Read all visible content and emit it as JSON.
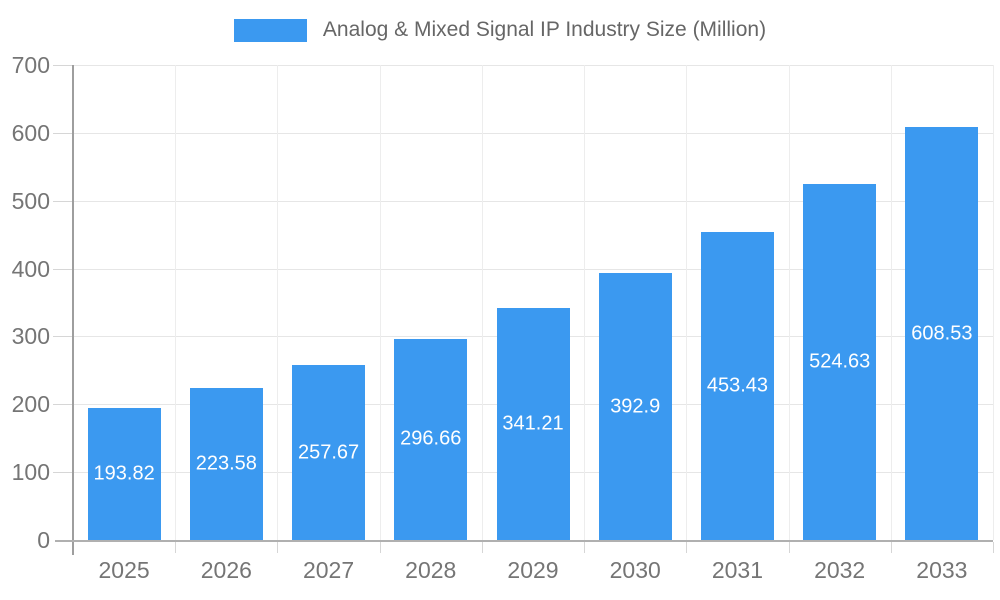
{
  "chart_data": {
    "type": "bar",
    "title": "Analog & Mixed Signal IP Industry Size (Million)",
    "legend_position": "top",
    "categories": [
      "2025",
      "2026",
      "2027",
      "2028",
      "2029",
      "2030",
      "2031",
      "2032",
      "2033"
    ],
    "values": [
      193.82,
      223.58,
      257.67,
      296.66,
      341.21,
      392.9,
      453.43,
      524.63,
      608.53
    ],
    "value_labels": [
      "193.82",
      "223.58",
      "257.67",
      "296.66",
      "341.21",
      "392.9",
      "453.43",
      "524.63",
      "608.53"
    ],
    "xlabel": "",
    "ylabel": "",
    "ylim": [
      0,
      700
    ],
    "y_ticks": [
      0,
      100,
      200,
      300,
      400,
      500,
      600,
      700
    ],
    "grid": true,
    "colors": {
      "bar": "#3B99F0",
      "grid_h": "#e6e6e6",
      "grid_v": "#ededed",
      "axis_y": "#9e9e9e",
      "axis_x": "#b0b0b0",
      "tick": "#d6d6d6",
      "axis_text": "#757575",
      "legend_text": "#666666",
      "value_text": "#ffffff",
      "background": "#ffffff"
    }
  }
}
